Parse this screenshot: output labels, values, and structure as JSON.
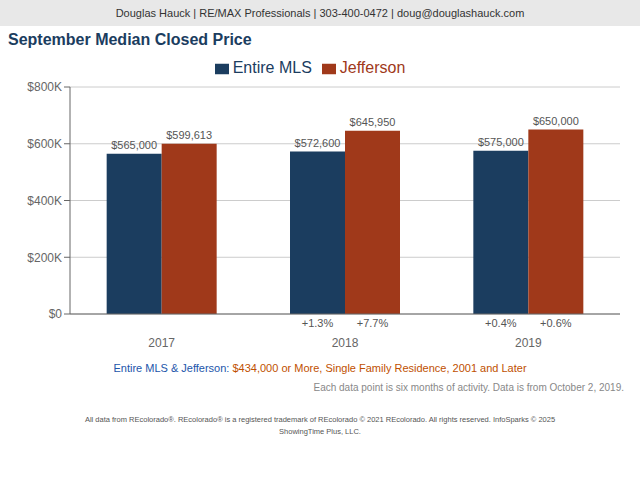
{
  "chart_data": {
    "type": "bar",
    "title": "September Median Closed Price",
    "categories": [
      "2017",
      "2018",
      "2019"
    ],
    "series": [
      {
        "name": "Entire MLS",
        "color": "#1b3d5f",
        "values": [
          565000,
          572600,
          575000
        ],
        "value_labels": [
          "$565,000",
          "$572,600",
          "$575,000"
        ],
        "annotations": [
          null,
          "+1.3%",
          "+0.4%"
        ]
      },
      {
        "name": "Jefferson",
        "color": "#a0391a",
        "values": [
          599613,
          645950,
          650000
        ],
        "value_labels": [
          "$599,613",
          "$645,950",
          "$650,000"
        ],
        "annotations": [
          null,
          "+7.7%",
          "+0.6%"
        ]
      }
    ],
    "ylim": [
      0,
      800000
    ],
    "yticks": [
      {
        "value": 0,
        "label": "$0"
      },
      {
        "value": 200000,
        "label": "$200K"
      },
      {
        "value": 400000,
        "label": "$400K"
      },
      {
        "value": 600000,
        "label": "$600K"
      },
      {
        "value": 800000,
        "label": "$800K"
      }
    ],
    "grid": true,
    "legend": "top",
    "data_labels": true,
    "annotations": [
      {
        "text": "Douglas Hauck | RE/MAX Professionals | 303-400-0472 | doug@douglashauck.com"
      },
      {
        "text": "Entire MLS & Jefferson:",
        "color": "#2255aa"
      },
      {
        "text": " $434,000 or More, Single Family Residence, 2001 and Later",
        "color": "#c05000"
      },
      {
        "text": "Each data point is six months of activity. Data is from October 2, 2019."
      },
      {
        "text": "All data from REcolorado®. REcolorado® is a registered trademark of REcolorado © 2021 REcolorado. All rights reserved. InfoSparks © 2025"
      },
      {
        "text": "ShowingTime Plus, LLC."
      }
    ]
  }
}
